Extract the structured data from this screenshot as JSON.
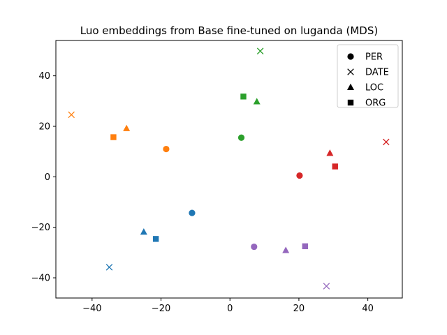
{
  "chart_data": {
    "type": "scatter",
    "title": "Luo embeddings from Base fine-tuned on luganda (MDS)",
    "xlabel": "",
    "ylabel": "",
    "xlim": [
      -50.5,
      50.0
    ],
    "ylim": [
      -48.0,
      54.0
    ],
    "xticks": [
      -40,
      -20,
      0,
      20,
      40
    ],
    "yticks": [
      -40,
      -20,
      0,
      20,
      40
    ],
    "grid": false,
    "legend_position": "top-right",
    "legend": [
      {
        "label": "PER",
        "marker": "circle"
      },
      {
        "label": "DATE",
        "marker": "x"
      },
      {
        "label": "LOC",
        "marker": "triangle"
      },
      {
        "label": "ORG",
        "marker": "square"
      }
    ],
    "colors": {
      "blue": "#1f77b4",
      "orange": "#ff7f0e",
      "green": "#2ca02c",
      "red": "#d62728",
      "purple": "#9467bd"
    },
    "points": [
      {
        "x": -11.0,
        "y": -14.3,
        "marker": "circle",
        "color": "blue"
      },
      {
        "x": -35.0,
        "y": -35.8,
        "marker": "x",
        "color": "blue"
      },
      {
        "x": -25.0,
        "y": -21.8,
        "marker": "triangle",
        "color": "blue"
      },
      {
        "x": -21.5,
        "y": -24.6,
        "marker": "square",
        "color": "blue"
      },
      {
        "x": -18.5,
        "y": 11.0,
        "marker": "circle",
        "color": "orange"
      },
      {
        "x": -46.0,
        "y": 24.6,
        "marker": "x",
        "color": "orange"
      },
      {
        "x": -30.0,
        "y": 19.2,
        "marker": "triangle",
        "color": "orange"
      },
      {
        "x": -33.8,
        "y": 15.7,
        "marker": "square",
        "color": "orange"
      },
      {
        "x": 3.3,
        "y": 15.5,
        "marker": "circle",
        "color": "green"
      },
      {
        "x": 8.8,
        "y": 49.8,
        "marker": "x",
        "color": "green"
      },
      {
        "x": 7.8,
        "y": 29.8,
        "marker": "triangle",
        "color": "green"
      },
      {
        "x": 3.9,
        "y": 31.8,
        "marker": "square",
        "color": "green"
      },
      {
        "x": 20.2,
        "y": 0.5,
        "marker": "circle",
        "color": "red"
      },
      {
        "x": 45.3,
        "y": 13.8,
        "marker": "x",
        "color": "red"
      },
      {
        "x": 29.0,
        "y": 9.4,
        "marker": "triangle",
        "color": "red"
      },
      {
        "x": 30.5,
        "y": 4.1,
        "marker": "square",
        "color": "red"
      },
      {
        "x": 7.0,
        "y": -27.7,
        "marker": "circle",
        "color": "purple"
      },
      {
        "x": 28.0,
        "y": -43.3,
        "marker": "x",
        "color": "purple"
      },
      {
        "x": 16.2,
        "y": -29.1,
        "marker": "triangle",
        "color": "purple"
      },
      {
        "x": 21.8,
        "y": -27.5,
        "marker": "square",
        "color": "purple"
      }
    ]
  }
}
